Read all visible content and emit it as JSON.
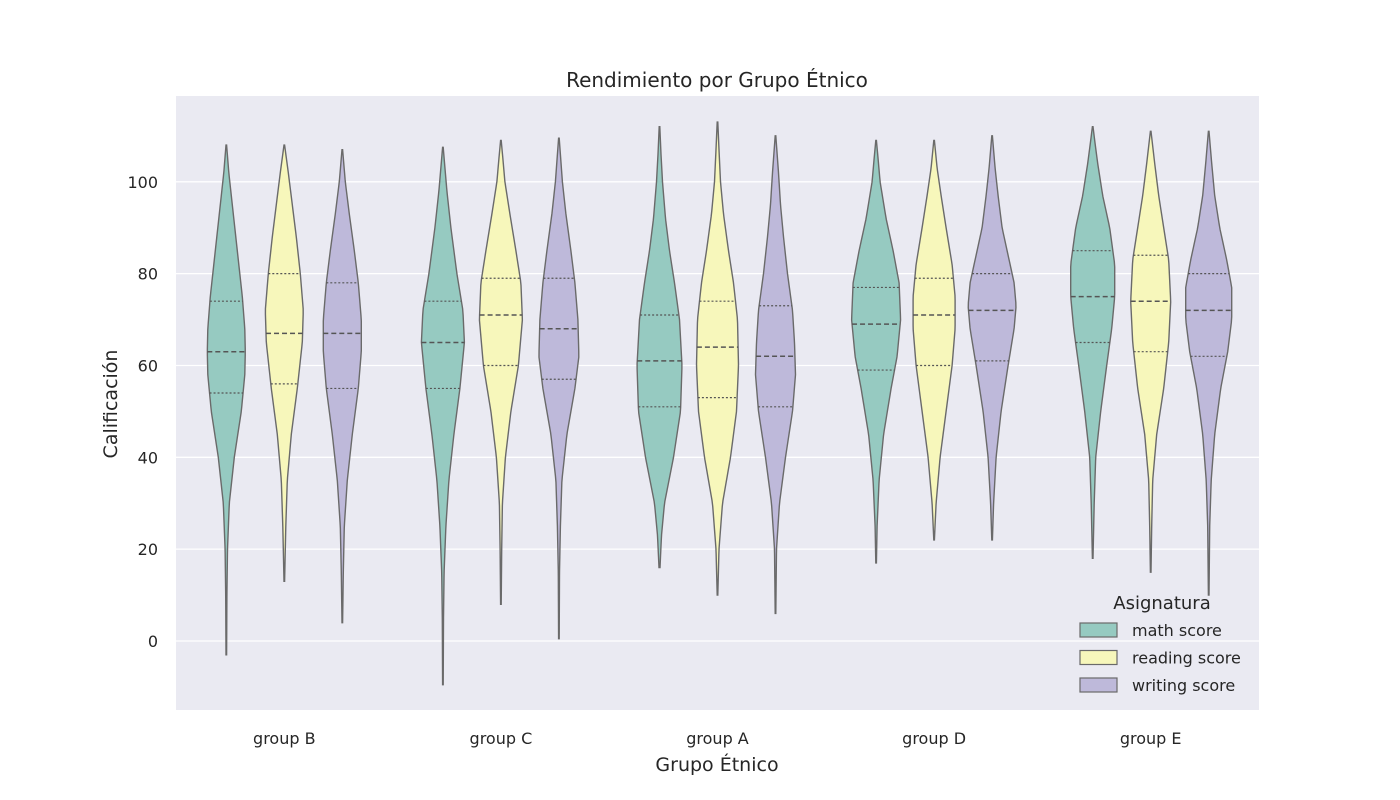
{
  "chart_data": {
    "type": "violin",
    "title": "Rendimiento por Grupo Étnico",
    "xlabel": "Grupo Étnico",
    "ylabel": "Calificación",
    "categories": [
      "group B",
      "group C",
      "group A",
      "group D",
      "group E"
    ],
    "ylim": [
      -15,
      118
    ],
    "yticks": [
      0,
      20,
      40,
      60,
      80,
      100
    ],
    "grid": true,
    "legend": {
      "title": "Asignatura",
      "placement": "lower-right"
    },
    "series": [
      {
        "name": "math score",
        "color": "#96cac1",
        "violins": [
          {
            "min": -3,
            "max": 108,
            "q1": 54,
            "median": 63,
            "q3": 74,
            "profile": [
              [
                -3,
                0.3
              ],
              [
                10,
                0.6
              ],
              [
                20,
                1.2
              ],
              [
                30,
                3
              ],
              [
                40,
                8
              ],
              [
                50,
                15
              ],
              [
                58,
                18.5
              ],
              [
                63,
                19
              ],
              [
                68,
                18.5
              ],
              [
                75,
                16
              ],
              [
                85,
                11
              ],
              [
                95,
                6
              ],
              [
                102,
                2.5
              ],
              [
                108,
                0.3
              ]
            ]
          },
          {
            "min": -9.5,
            "max": 107.5,
            "q1": 55,
            "median": 65,
            "q3": 74,
            "profile": [
              [
                -9.5,
                0.3
              ],
              [
                5,
                0.6
              ],
              [
                15,
                1.2
              ],
              [
                25,
                3
              ],
              [
                35,
                6
              ],
              [
                45,
                11
              ],
              [
                55,
                17
              ],
              [
                65,
                21.5
              ],
              [
                72,
                20
              ],
              [
                80,
                14
              ],
              [
                90,
                8
              ],
              [
                98,
                4
              ],
              [
                107.5,
                0.3
              ]
            ]
          },
          {
            "min": 16,
            "max": 112,
            "q1": 51,
            "median": 61,
            "q3": 71,
            "profile": [
              [
                16,
                0.5
              ],
              [
                23,
                2
              ],
              [
                30,
                5
              ],
              [
                40,
                14
              ],
              [
                50,
                21
              ],
              [
                60,
                22.5
              ],
              [
                70,
                20
              ],
              [
                78,
                15
              ],
              [
                85,
                10
              ],
              [
                92,
                6
              ],
              [
                100,
                3
              ],
              [
                106,
                1.5
              ],
              [
                112,
                0.3
              ]
            ]
          },
          {
            "min": 17,
            "max": 109,
            "q1": 59,
            "median": 69,
            "q3": 77,
            "profile": [
              [
                17,
                0.3
              ],
              [
                25,
                1
              ],
              [
                35,
                3
              ],
              [
                45,
                7.5
              ],
              [
                55,
                15
              ],
              [
                62,
                21
              ],
              [
                70,
                24.5
              ],
              [
                78,
                23
              ],
              [
                85,
                17
              ],
              [
                92,
                10
              ],
              [
                100,
                4
              ],
              [
                105,
                2
              ],
              [
                109,
                0.3
              ]
            ]
          },
          {
            "min": 18,
            "max": 112,
            "q1": 65,
            "median": 75,
            "q3": 85,
            "profile": [
              [
                18,
                0.3
              ],
              [
                30,
                1.5
              ],
              [
                40,
                3
              ],
              [
                50,
                8
              ],
              [
                60,
                14
              ],
              [
                68,
                19
              ],
              [
                75,
                22
              ],
              [
                82,
                22
              ],
              [
                90,
                17
              ],
              [
                97,
                10
              ],
              [
                104,
                5
              ],
              [
                109,
                2
              ],
              [
                112,
                0.3
              ]
            ]
          }
        ]
      },
      {
        "name": "reading score",
        "color": "#f7f7bb",
        "violins": [
          {
            "min": 13,
            "max": 108,
            "q1": 56,
            "median": 67,
            "q3": 80,
            "profile": [
              [
                13,
                0.3
              ],
              [
                25,
                1.5
              ],
              [
                35,
                3
              ],
              [
                45,
                7
              ],
              [
                55,
                13
              ],
              [
                65,
                18
              ],
              [
                72,
                19
              ],
              [
                80,
                16
              ],
              [
                88,
                12
              ],
              [
                95,
                8
              ],
              [
                102,
                4
              ],
              [
                108,
                0.3
              ]
            ]
          },
          {
            "min": 8,
            "max": 109,
            "q1": 60,
            "median": 71,
            "q3": 79,
            "profile": [
              [
                8,
                0.3
              ],
              [
                20,
                0.8
              ],
              [
                30,
                1.5
              ],
              [
                40,
                4.5
              ],
              [
                50,
                10
              ],
              [
                60,
                17.5
              ],
              [
                70,
                21.5
              ],
              [
                78,
                20
              ],
              [
                85,
                15
              ],
              [
                93,
                9
              ],
              [
                100,
                4
              ],
              [
                105,
                2
              ],
              [
                109,
                0.3
              ]
            ]
          },
          {
            "min": 10,
            "max": 113,
            "q1": 53,
            "median": 64,
            "q3": 74,
            "profile": [
              [
                10,
                0.3
              ],
              [
                20,
                1.5
              ],
              [
                30,
                5
              ],
              [
                40,
                13
              ],
              [
                50,
                19
              ],
              [
                60,
                21
              ],
              [
                70,
                20
              ],
              [
                78,
                16
              ],
              [
                85,
                11
              ],
              [
                93,
                6
              ],
              [
                100,
                3
              ],
              [
                107,
                1.5
              ],
              [
                113,
                0.3
              ]
            ]
          },
          {
            "min": 22,
            "max": 109,
            "q1": 60,
            "median": 71,
            "q3": 79,
            "profile": [
              [
                22,
                0.3
              ],
              [
                30,
                2
              ],
              [
                40,
                6
              ],
              [
                50,
                12
              ],
              [
                60,
                18
              ],
              [
                68,
                21
              ],
              [
                75,
                21
              ],
              [
                82,
                18
              ],
              [
                90,
                12
              ],
              [
                97,
                7
              ],
              [
                103,
                3
              ],
              [
                109,
                0.3
              ]
            ]
          },
          {
            "min": 15,
            "max": 111,
            "q1": 63,
            "median": 74,
            "q3": 84,
            "profile": [
              [
                15,
                0.3
              ],
              [
                25,
                1
              ],
              [
                35,
                2
              ],
              [
                45,
                6
              ],
              [
                55,
                13
              ],
              [
                65,
                18
              ],
              [
                74,
                20
              ],
              [
                83,
                18
              ],
              [
                90,
                13
              ],
              [
                97,
                8
              ],
              [
                104,
                4
              ],
              [
                111,
                0.3
              ]
            ]
          }
        ]
      },
      {
        "name": "writing score",
        "color": "#beb9da",
        "violins": [
          {
            "min": 4,
            "max": 107,
            "q1": 55,
            "median": 67,
            "q3": 78,
            "profile": [
              [
                4,
                0.3
              ],
              [
                15,
                1
              ],
              [
                25,
                2
              ],
              [
                35,
                5
              ],
              [
                45,
                10
              ],
              [
                55,
                16
              ],
              [
                63,
                19
              ],
              [
                70,
                19
              ],
              [
                78,
                16
              ],
              [
                85,
                12
              ],
              [
                93,
                7
              ],
              [
                100,
                3
              ],
              [
                107,
                0.3
              ]
            ]
          },
          {
            "min": 0.5,
            "max": 109.5,
            "q1": 57,
            "median": 68,
            "q3": 79,
            "profile": [
              [
                0.5,
                0.3
              ],
              [
                15,
                0.6
              ],
              [
                25,
                1.5
              ],
              [
                35,
                3
              ],
              [
                45,
                8
              ],
              [
                55,
                16
              ],
              [
                62,
                20
              ],
              [
                70,
                19
              ],
              [
                78,
                16
              ],
              [
                85,
                12
              ],
              [
                93,
                7
              ],
              [
                100,
                3.5
              ],
              [
                109.5,
                0.3
              ]
            ]
          },
          {
            "min": 6,
            "max": 110,
            "q1": 51,
            "median": 62,
            "q3": 73,
            "profile": [
              [
                6,
                0.3
              ],
              [
                20,
                1
              ],
              [
                30,
                4
              ],
              [
                40,
                10
              ],
              [
                50,
                17
              ],
              [
                58,
                20
              ],
              [
                65,
                19
              ],
              [
                72,
                17
              ],
              [
                80,
                12
              ],
              [
                88,
                8
              ],
              [
                95,
                5
              ],
              [
                102,
                3
              ],
              [
                110,
                0.3
              ]
            ]
          },
          {
            "min": 22,
            "max": 110,
            "q1": 61,
            "median": 72,
            "q3": 80,
            "profile": [
              [
                22,
                0.3
              ],
              [
                30,
                1.5
              ],
              [
                40,
                4
              ],
              [
                50,
                9
              ],
              [
                60,
                16
              ],
              [
                68,
                22
              ],
              [
                73,
                24
              ],
              [
                78,
                22
              ],
              [
                85,
                15
              ],
              [
                90,
                10
              ],
              [
                97,
                6
              ],
              [
                103,
                3
              ],
              [
                110,
                0.3
              ]
            ]
          },
          {
            "min": 10,
            "max": 111,
            "q1": 62,
            "median": 72,
            "q3": 80,
            "profile": [
              [
                10,
                0.3
              ],
              [
                25,
                1
              ],
              [
                35,
                2.5
              ],
              [
                45,
                6
              ],
              [
                55,
                12
              ],
              [
                63,
                19
              ],
              [
                70,
                23
              ],
              [
                77,
                23
              ],
              [
                83,
                18
              ],
              [
                90,
                11
              ],
              [
                97,
                6
              ],
              [
                104,
                3
              ],
              [
                111,
                0.3
              ]
            ]
          }
        ]
      }
    ]
  }
}
